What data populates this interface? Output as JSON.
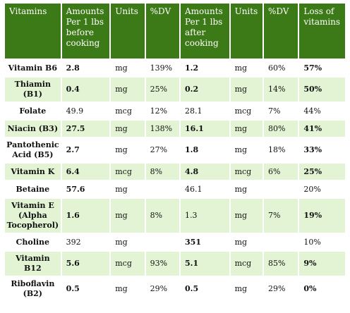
{
  "headers": [
    "Vitamins",
    "Amounts Per 1 lbs before cooking",
    "Units",
    "%DV",
    "Amounts Per 1 lbs after cooking",
    "Units",
    "%DV",
    "Loss of vitamins"
  ],
  "rows": [
    {
      "vitamin": "Vitamin B6",
      "before": "2.8",
      "unit1": "mg",
      "dv1": "139%",
      "after": "1.2",
      "unit2": "mg",
      "dv2": "60%",
      "loss": "57%"
    },
    {
      "vitamin": "Thiamin (B1)",
      "before": "0.4",
      "unit1": "mg",
      "dv1": "25%",
      "after": "0.2",
      "unit2": "mg",
      "dv2": "14%",
      "loss": "50%"
    },
    {
      "vitamin": "Folate",
      "before": "49.9",
      "unit1": "mcg",
      "dv1": "12%",
      "after": "28.1",
      "unit2": "mcg",
      "dv2": "7%",
      "loss": "44%"
    },
    {
      "vitamin": "Niacin (B3)",
      "before": "27.5",
      "unit1": "mg",
      "dv1": "138%",
      "after": "16.1",
      "unit2": "mg",
      "dv2": "80%",
      "loss": "41%"
    },
    {
      "vitamin": "Pantothenic Acid (B5)",
      "before": "2.7",
      "unit1": "mg",
      "dv1": "27%",
      "after": "1.8",
      "unit2": "mg",
      "dv2": "18%",
      "loss": "33%"
    },
    {
      "vitamin": "Vitamin K",
      "before": "6.4",
      "unit1": "mcg",
      "dv1": "8%",
      "after": "4.8",
      "unit2": "mcg",
      "dv2": "6%",
      "loss": "25%"
    },
    {
      "vitamin": "Betaine",
      "before": "57.6",
      "unit1": "mg",
      "dv1": "",
      "after": "46.1",
      "unit2": "mg",
      "dv2": "",
      "loss": "20%"
    },
    {
      "vitamin": "Vitamin E (Alpha Tocopherol)",
      "before": "1.6",
      "unit1": "mg",
      "dv1": "8%",
      "after": "1.3",
      "unit2": "mg",
      "dv2": "7%",
      "loss": "19%"
    },
    {
      "vitamin": "Choline",
      "before": "392",
      "unit1": "mg",
      "dv1": "",
      "after": "351",
      "unit2": "mg",
      "dv2": "",
      "loss": "10%"
    },
    {
      "vitamin": "Vitamin B12",
      "before": "5.6",
      "unit1": "mcg",
      "dv1": "93%",
      "after": "5.1",
      "unit2": "mcg",
      "dv2": "85%",
      "loss": "9%"
    },
    {
      "vitamin": "Riboflavin (B2)",
      "before": "0.5",
      "unit1": "mg",
      "dv1": "29%",
      "after": "0.5",
      "unit2": "mg",
      "dv2": "29%",
      "loss": "0%"
    }
  ],
  "colors": {
    "header_bg": "#3c7a17",
    "row_alt_bg": "#e3f4d4",
    "row_bg": "#ffffff"
  }
}
